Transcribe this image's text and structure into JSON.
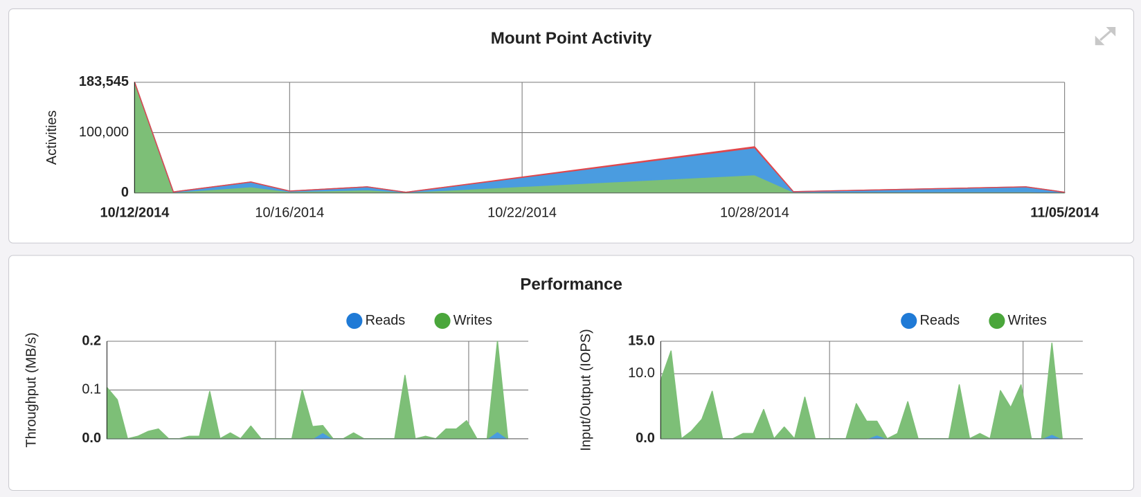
{
  "chart_data": [
    {
      "type": "area",
      "stacked": true,
      "title": "Mount Point Activity",
      "ylabel": "Activities",
      "x": [
        "2014-10-12",
        "2014-10-13",
        "2014-10-15",
        "2014-10-16",
        "2014-10-18",
        "2014-10-19",
        "2014-10-28",
        "2014-10-29",
        "2014-11-04",
        "2014-11-05"
      ],
      "series": [
        {
          "color": "#7dbf77",
          "values": [
            183545,
            1000,
            10000,
            2000,
            5000,
            1000,
            30000,
            1500,
            2000,
            500
          ]
        },
        {
          "color": "#4a9ce0",
          "values": [
            0,
            500,
            8000,
            1000,
            5000,
            0,
            45000,
            500,
            8000,
            500
          ]
        },
        {
          "color": "#e0474c",
          "values": [
            0,
            0,
            0,
            0,
            0,
            0,
            1500,
            0,
            0,
            0
          ]
        }
      ],
      "xlim": [
        "2014-10-12",
        "2014-11-05"
      ],
      "xticks": [
        {
          "value": "2014-10-12",
          "label": "10/12/2014"
        },
        {
          "value": "2014-10-16",
          "label": "10/16/2014"
        },
        {
          "value": "2014-10-22",
          "label": "10/22/2014"
        },
        {
          "value": "2014-10-28",
          "label": "10/28/2014"
        },
        {
          "value": "2014-11-05",
          "label": "11/05/2014"
        }
      ],
      "ylim": [
        0,
        183545
      ],
      "yticks": [
        0,
        {
          "value": 100000,
          "label": "100,000"
        },
        {
          "value": 183545,
          "label": "183,545"
        }
      ],
      "grid": true
    },
    {
      "type": "area",
      "stacked": true,
      "ylabel": "Throughput (MB/s)",
      "legend": "top-right",
      "categories": [
        null,
        null,
        null,
        null,
        null,
        null,
        null,
        null,
        null,
        null,
        null,
        null,
        null,
        null,
        null,
        null,
        null,
        null,
        null,
        null,
        null,
        null,
        null,
        null,
        null,
        null,
        null,
        null,
        null,
        null,
        null,
        null,
        null,
        null,
        null,
        null,
        null,
        null,
        null,
        null
      ],
      "series": [
        {
          "name": "Reads",
          "color": "#4a9ce0",
          "marker_color": "#1f7ad6",
          "values": [
            0,
            0,
            0,
            0,
            0,
            0,
            0,
            0,
            0,
            0,
            0,
            0,
            0,
            0,
            0,
            0,
            0,
            0,
            0,
            0,
            0,
            0.013,
            0,
            0,
            0,
            0,
            0,
            0,
            0,
            0,
            0,
            0,
            0,
            0,
            0,
            0,
            0,
            0,
            0.015,
            0
          ]
        },
        {
          "name": "Writes",
          "color": "#7dbf77",
          "marker_color": "#4aa63b",
          "values": [
            0.105,
            0.08,
            0,
            0.005,
            0.015,
            0.02,
            0,
            0,
            0.005,
            0.005,
            0.097,
            0,
            0.012,
            0,
            0.026,
            0,
            0,
            0,
            0,
            0.1,
            0.025,
            0.014,
            0,
            0,
            0.012,
            0,
            0,
            0,
            0,
            0.13,
            0,
            0.005,
            0,
            0.02,
            0.02,
            0.037,
            0,
            0,
            0.185,
            0
          ]
        }
      ],
      "xlim": [
        0,
        41
      ],
      "xticks": [
        16.4,
        35.2
      ],
      "ylim": [
        0,
        0.2
      ],
      "yticks": [
        {
          "value": 0,
          "label": "0.0"
        },
        0.1,
        0.2
      ],
      "grid": true
    },
    {
      "type": "area",
      "stacked": true,
      "ylabel": "Input/Output (IOPS)",
      "legend": "top-right",
      "categories": [
        null,
        null,
        null,
        null,
        null,
        null,
        null,
        null,
        null,
        null,
        null,
        null,
        null,
        null,
        null,
        null,
        null,
        null,
        null,
        null,
        null,
        null,
        null,
        null,
        null,
        null,
        null,
        null,
        null,
        null,
        null,
        null,
        null,
        null,
        null,
        null,
        null,
        null,
        null,
        null
      ],
      "series": [
        {
          "name": "Reads",
          "color": "#4a9ce0",
          "marker_color": "#1f7ad6",
          "values": [
            0,
            0,
            0,
            0,
            0,
            0,
            0,
            0,
            0,
            0,
            0,
            0,
            0,
            0,
            0,
            0,
            0,
            0,
            0,
            0,
            0,
            0.6,
            0,
            0,
            0,
            0,
            0,
            0,
            0,
            0,
            0,
            0,
            0,
            0,
            0,
            0,
            0,
            0,
            0.7,
            0
          ]
        },
        {
          "name": "Writes",
          "color": "#7dbf77",
          "marker_color": "#4aa63b",
          "values": [
            9,
            13.5,
            0,
            1.2,
            3,
            7.3,
            0,
            0,
            0.8,
            0.8,
            4.5,
            0,
            1.8,
            0,
            6.4,
            0,
            0,
            0,
            0,
            5.4,
            2.7,
            2.1,
            0,
            0.8,
            5.7,
            0,
            0,
            0,
            0,
            8.3,
            0,
            0.8,
            0,
            7.4,
            4.8,
            8.3,
            0,
            0,
            14,
            0
          ]
        }
      ],
      "xlim": [
        0,
        41
      ],
      "xticks": [
        16.4,
        35.2
      ],
      "ylim": [
        0,
        15
      ],
      "yticks": [
        {
          "value": 0,
          "label": "0.0"
        },
        {
          "value": 10,
          "label": "10.0"
        },
        {
          "value": 15,
          "label": "15.0"
        }
      ],
      "grid": true
    }
  ],
  "performance_title": "Performance"
}
